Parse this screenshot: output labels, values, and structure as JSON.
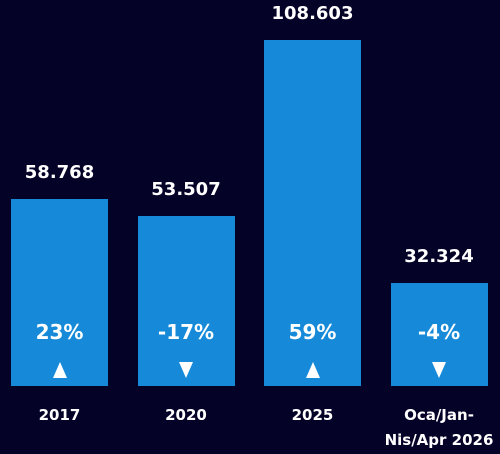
{
  "chart_data": {
    "type": "bar",
    "categories": [
      "2017",
      "2020",
      "2025",
      "Oca/Jan-Nis/Apr 2026"
    ],
    "values": [
      58768,
      53507,
      108603,
      32324
    ],
    "value_labels": [
      "58.768",
      "53.507",
      "108.603",
      "32.324"
    ],
    "change_values": [
      23,
      -17,
      59,
      -4
    ],
    "change_labels": [
      "23%",
      "-17%",
      "59%",
      "-4%"
    ],
    "color": "#168ad9"
  }
}
